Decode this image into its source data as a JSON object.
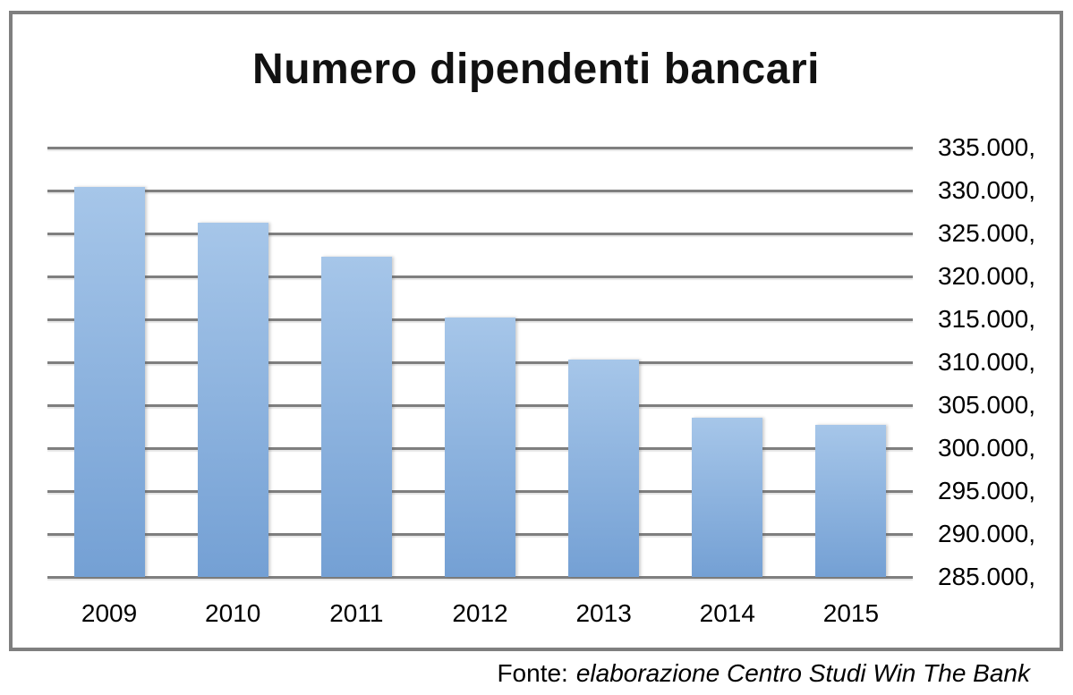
{
  "chart_data": {
    "type": "bar",
    "title": "Numero dipendenti bancari",
    "categories": [
      "2009",
      "2010",
      "2011",
      "2012",
      "2013",
      "2014",
      "2015"
    ],
    "values": [
      330400,
      326300,
      322300,
      315200,
      310300,
      303500,
      302700
    ],
    "xlabel": "",
    "ylabel": "",
    "ylim": [
      285000,
      335000
    ],
    "ytick_step": 5000,
    "ytick_labels_top_to_bottom": [
      "335.000,",
      "330.000,",
      "325.000,",
      "320.000,",
      "315.000,",
      "310.000,",
      "305.000,",
      "300.000,",
      "295.000,",
      "290.000,",
      "285.000,"
    ],
    "grid": true,
    "legend": false,
    "colors": {
      "bar_gradient_top": "#a6c6e9",
      "bar_gradient_bottom": "#74a0d4",
      "gridline": "#7f7f7f",
      "frame_border": "#7f7f7f",
      "text": "#000000",
      "background": "#ffffff"
    }
  },
  "source_note": {
    "prefix": "Fonte:",
    "text": "elaborazione Centro Studi Win The Bank"
  }
}
